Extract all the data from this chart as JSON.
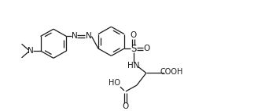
{
  "bg_color": "#ffffff",
  "line_color": "#1a1a1a",
  "lw": 0.9,
  "figsize": [
    3.51,
    1.42
  ],
  "dpi": 100,
  "xlim": [
    0,
    351
  ],
  "ylim": [
    0,
    142
  ]
}
